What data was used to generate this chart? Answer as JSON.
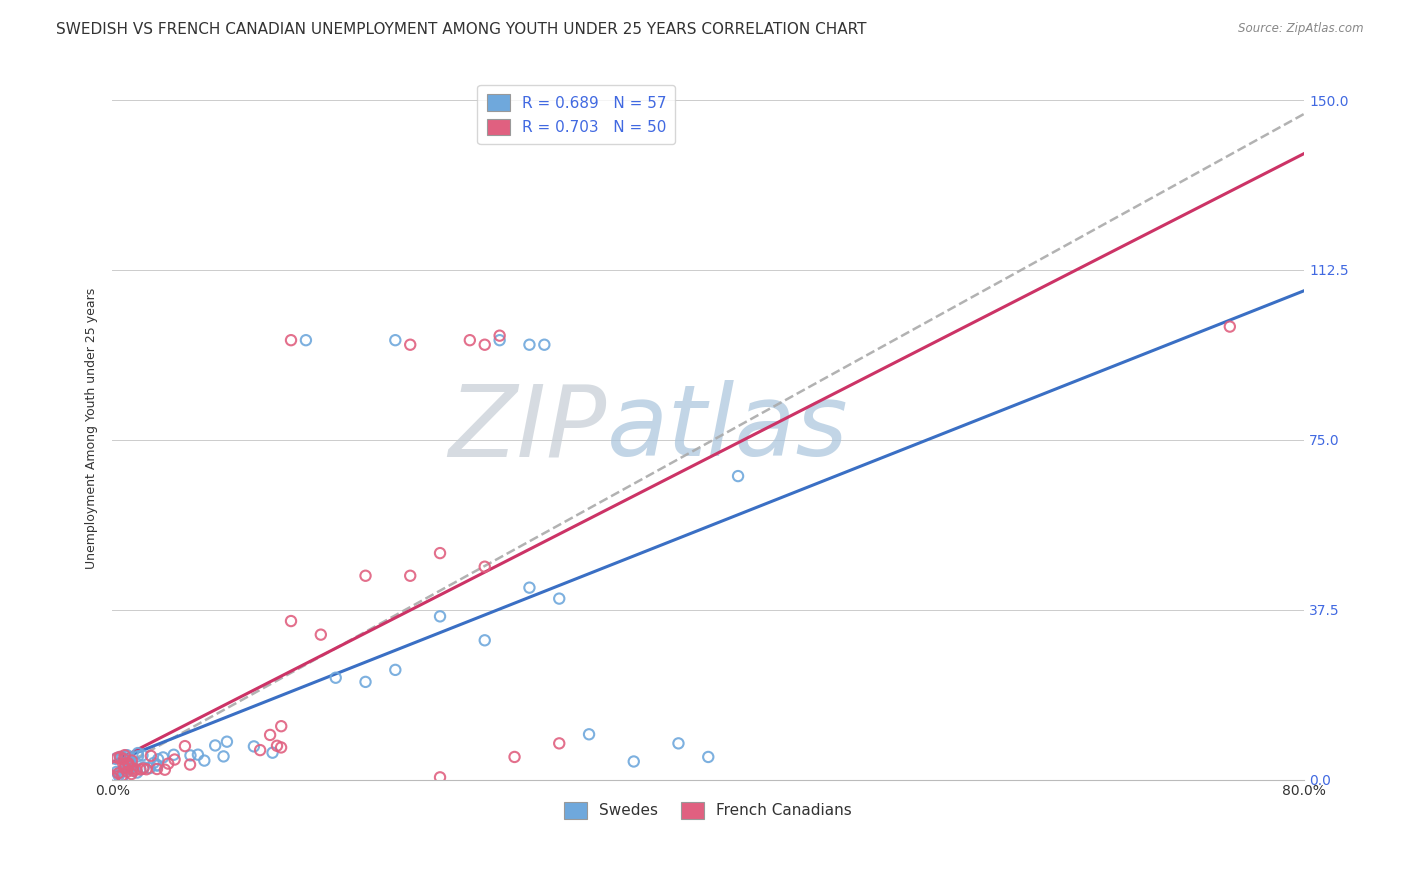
{
  "title": "SWEDISH VS FRENCH CANADIAN UNEMPLOYMENT AMONG YOUTH UNDER 25 YEARS CORRELATION CHART",
  "source": "Source: ZipAtlas.com",
  "ylabel_label": "Unemployment Among Youth under 25 years",
  "ytick_labels": [
    "0.0%",
    "37.5%",
    "75.0%",
    "112.5%",
    "150.0%"
  ],
  "ytick_values": [
    0.0,
    37.5,
    75.0,
    112.5,
    150.0
  ],
  "xtick_labels": [
    "0.0%",
    "80.0%"
  ],
  "xtick_values": [
    0.0,
    80.0
  ],
  "xlim": [
    0.0,
    80.0
  ],
  "ylim": [
    0.0,
    155.0
  ],
  "legend_swedes": "Swedes",
  "legend_french": "French Canadians",
  "R_swedes": 0.689,
  "N_swedes": 57,
  "R_french": 0.703,
  "N_french": 50,
  "color_swedes": "#6fa8dc",
  "color_french": "#e06080",
  "color_swedes_line": "#3a6fc4",
  "color_french_line": "#cc3366",
  "color_gray_line": "#aaaaaa",
  "background_color": "#ffffff",
  "grid_color": "#cccccc",
  "title_fontsize": 11,
  "axis_label_fontsize": 9,
  "tick_fontsize": 10,
  "legend_fontsize": 11,
  "watermark_text": "ZIPatlas",
  "watermark_color_left": "#c0c8d0",
  "watermark_color_right": "#aac0d8"
}
